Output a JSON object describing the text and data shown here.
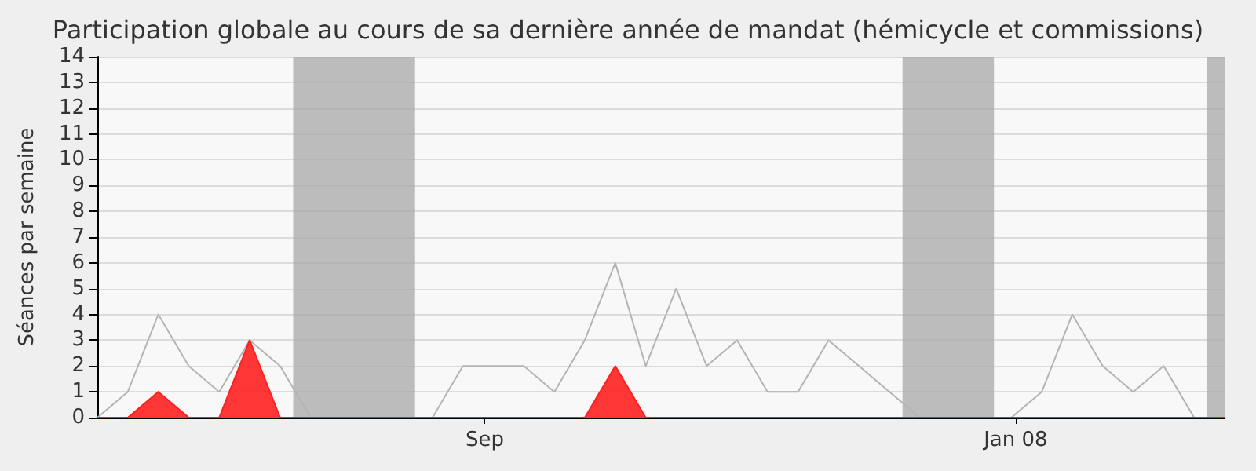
{
  "chart_data": {
    "type": "line",
    "title": "Participation globale au cours de sa dernière année de mandat (hémicycle et commissions)",
    "ylabel": "Séances par semaine",
    "x": [
      "2007-06-04",
      "2007-06-11",
      "2007-06-18",
      "2007-06-25",
      "2007-07-02",
      "2007-07-09",
      "2007-07-16",
      "2007-07-23",
      "2007-07-30",
      "2007-08-06",
      "2007-08-13",
      "2007-08-20",
      "2007-08-27",
      "2007-09-03",
      "2007-09-10",
      "2007-09-17",
      "2007-09-24",
      "2007-10-01",
      "2007-10-08",
      "2007-10-15",
      "2007-10-22",
      "2007-10-29",
      "2007-11-05",
      "2007-11-12",
      "2007-11-19",
      "2007-11-26",
      "2007-12-03",
      "2007-12-10",
      "2007-12-17",
      "2007-12-24",
      "2007-12-31",
      "2008-01-07",
      "2008-01-14",
      "2008-01-21",
      "2008-01-28",
      "2008-02-04",
      "2008-02-11",
      "2008-02-18"
    ],
    "series": [
      {
        "color": "#b4b4b4",
        "values": [
          0,
          1,
          4,
          2,
          1,
          3,
          2,
          0,
          0,
          0,
          0,
          0,
          2,
          2,
          2,
          1,
          3,
          6,
          2,
          5,
          2,
          3,
          1,
          1,
          3,
          2,
          1,
          0,
          0,
          0,
          0,
          1,
          4,
          2,
          1,
          2,
          0,
          0
        ]
      },
      {
        "type": "area",
        "color": "#ff2020",
        "values": [
          0,
          0,
          1,
          0,
          0,
          3,
          0,
          0,
          0,
          0,
          0,
          0,
          0,
          0,
          0,
          0,
          0,
          2,
          0,
          0,
          0,
          0,
          0,
          0,
          0,
          0,
          0,
          0,
          0,
          0,
          0,
          0,
          0,
          0,
          0,
          0,
          0,
          0
        ]
      }
    ],
    "xlim": [
      "2007-06-04",
      "2008-02-18"
    ],
    "xticks": [
      {
        "value": "2007-09-01",
        "label": "Sep"
      },
      {
        "value": "2008-01-01",
        "label": "Jan 08"
      }
    ],
    "ylim": [
      0,
      14
    ],
    "yticks": [
      0,
      1,
      2,
      3,
      4,
      5,
      6,
      7,
      8,
      9,
      10,
      11,
      12,
      13,
      14
    ],
    "bands": [
      {
        "axis": "x",
        "from": "2007-07-19",
        "to": "2007-08-16",
        "color": "#a8a8a8"
      },
      {
        "axis": "x",
        "from": "2007-12-06",
        "to": "2007-12-27",
        "color": "#a8a8a8"
      },
      {
        "axis": "x",
        "from": "2008-02-14",
        "to": "2008-02-18",
        "color": "#a8a8a8"
      }
    ],
    "grid": "y",
    "marker": "none",
    "line_style": "solid"
  }
}
